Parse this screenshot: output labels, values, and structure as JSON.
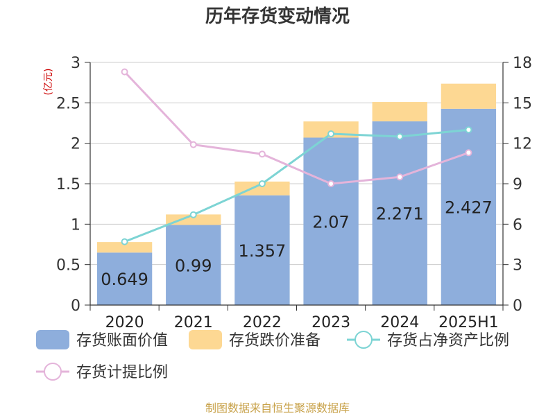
{
  "title": "历年存货变动情况",
  "source": "制图数据来自恒生聚源数据库",
  "colors": {
    "book": "#8eaedc",
    "reserve": "#fdd893",
    "ratio_net": "#7dd4d4",
    "ratio_provision": "#e4b4da",
    "axis": "#333333",
    "grid": "#cccccc",
    "unit": "#cc0000"
  },
  "chart_data": {
    "type": "bar",
    "stacked": true,
    "title": "历年存货变动情况",
    "categories": [
      "2020",
      "2021",
      "2022",
      "2023",
      "2024",
      "2025H1"
    ],
    "left_axis": {
      "unit_label": "(亿元)",
      "ylim": [
        0,
        3
      ],
      "ticks": [
        "0",
        "0.5",
        "1",
        "1.5",
        "2",
        "2.5",
        "3"
      ]
    },
    "right_axis": {
      "ylim": [
        0,
        18
      ],
      "ticks": [
        "0",
        "3",
        "6",
        "9",
        "12",
        "15",
        "18"
      ]
    },
    "grid": true,
    "legend_position": "bottom",
    "series": [
      {
        "name": "存货账面价值",
        "type": "bar",
        "axis": "left",
        "values": [
          0.649,
          0.99,
          1.357,
          2.07,
          2.271,
          2.427
        ],
        "labels": [
          "0.649",
          "0.99",
          "1.357",
          "2.07",
          "2.271",
          "2.427"
        ]
      },
      {
        "name": "存货跌价准备",
        "type": "bar",
        "axis": "left",
        "values": [
          0.13,
          0.13,
          0.17,
          0.2,
          0.24,
          0.31
        ]
      },
      {
        "name": "存货占净资产比例",
        "type": "line",
        "axis": "right",
        "values": [
          4.7,
          6.7,
          9.0,
          12.7,
          12.5,
          13.0
        ]
      },
      {
        "name": "存货计提比例",
        "type": "line",
        "axis": "right",
        "values": [
          17.3,
          11.9,
          11.2,
          9.0,
          9.5,
          11.3
        ]
      }
    ]
  }
}
